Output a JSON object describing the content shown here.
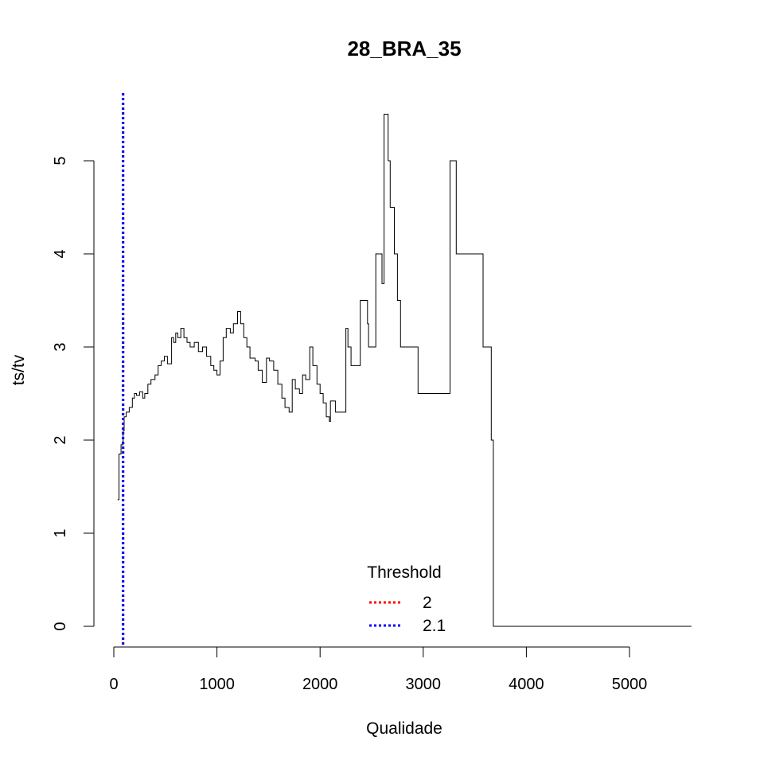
{
  "chart_data": {
    "type": "line",
    "title": "28_BRA_35",
    "xlabel": "Qualidade",
    "ylabel": "ts/tv",
    "xlim": [
      0,
      5000
    ],
    "ylim": [
      0,
      5
    ],
    "x_ticks": [
      0,
      1000,
      2000,
      3000,
      4000,
      5000
    ],
    "y_ticks": [
      0,
      1,
      2,
      3,
      4,
      5
    ],
    "grid": false,
    "legend": {
      "title": "Threshold",
      "placement": "bottom-center",
      "entries": [
        {
          "label": "2",
          "color": "#ff0000",
          "style": "dotted"
        },
        {
          "label": "2.1",
          "color": "#0000ff",
          "style": "dotted"
        }
      ]
    },
    "thresholds": [
      {
        "label": "2",
        "x": 90,
        "color": "#ff0000"
      },
      {
        "label": "2.1",
        "x": 90,
        "color": "#0000ff"
      }
    ],
    "series": [
      {
        "color": "#000000",
        "step": true,
        "points": [
          [
            37,
            1.36
          ],
          [
            50,
            1.85
          ],
          [
            70,
            1.95
          ],
          [
            90,
            2.1
          ],
          [
            100,
            2.25
          ],
          [
            120,
            2.3
          ],
          [
            150,
            2.35
          ],
          [
            180,
            2.45
          ],
          [
            200,
            2.5
          ],
          [
            220,
            2.48
          ],
          [
            250,
            2.52
          ],
          [
            280,
            2.45
          ],
          [
            300,
            2.5
          ],
          [
            330,
            2.6
          ],
          [
            360,
            2.65
          ],
          [
            400,
            2.7
          ],
          [
            430,
            2.8
          ],
          [
            460,
            2.85
          ],
          [
            490,
            2.9
          ],
          [
            520,
            2.82
          ],
          [
            560,
            3.1
          ],
          [
            580,
            3.05
          ],
          [
            600,
            3.15
          ],
          [
            620,
            3.1
          ],
          [
            650,
            3.2
          ],
          [
            680,
            3.1
          ],
          [
            710,
            3.05
          ],
          [
            740,
            3.0
          ],
          [
            780,
            3.05
          ],
          [
            820,
            2.95
          ],
          [
            860,
            3.0
          ],
          [
            900,
            2.9
          ],
          [
            940,
            2.8
          ],
          [
            970,
            2.75
          ],
          [
            1000,
            2.7
          ],
          [
            1030,
            2.85
          ],
          [
            1060,
            3.1
          ],
          [
            1090,
            3.2
          ],
          [
            1130,
            3.15
          ],
          [
            1160,
            3.25
          ],
          [
            1200,
            3.38
          ],
          [
            1230,
            3.25
          ],
          [
            1260,
            3.1
          ],
          [
            1290,
            3.0
          ],
          [
            1320,
            2.88
          ],
          [
            1370,
            2.85
          ],
          [
            1400,
            2.75
          ],
          [
            1440,
            2.62
          ],
          [
            1480,
            2.88
          ],
          [
            1510,
            2.85
          ],
          [
            1550,
            2.75
          ],
          [
            1590,
            2.6
          ],
          [
            1630,
            2.45
          ],
          [
            1660,
            2.35
          ],
          [
            1700,
            2.3
          ],
          [
            1730,
            2.65
          ],
          [
            1760,
            2.55
          ],
          [
            1800,
            2.5
          ],
          [
            1830,
            2.7
          ],
          [
            1860,
            2.65
          ],
          [
            1900,
            3.0
          ],
          [
            1930,
            2.8
          ],
          [
            1970,
            2.6
          ],
          [
            2000,
            2.5
          ],
          [
            2030,
            2.4
          ],
          [
            2060,
            2.25
          ],
          [
            2090,
            2.2
          ],
          [
            2100,
            2.42
          ],
          [
            2150,
            2.3
          ],
          [
            2250,
            3.2
          ],
          [
            2270,
            3.0
          ],
          [
            2300,
            2.8
          ],
          [
            2390,
            3.5
          ],
          [
            2460,
            3.25
          ],
          [
            2470,
            3.0
          ],
          [
            2540,
            4.0
          ],
          [
            2600,
            3.68
          ],
          [
            2620,
            5.5
          ],
          [
            2660,
            5.0
          ],
          [
            2680,
            4.5
          ],
          [
            2720,
            4.0
          ],
          [
            2750,
            3.5
          ],
          [
            2780,
            3.0
          ],
          [
            2950,
            2.5
          ],
          [
            3260,
            5.0
          ],
          [
            3320,
            4.0
          ],
          [
            3580,
            3.0
          ],
          [
            3660,
            2.0
          ],
          [
            3680,
            0.0
          ],
          [
            5600,
            0.0
          ]
        ]
      }
    ]
  }
}
